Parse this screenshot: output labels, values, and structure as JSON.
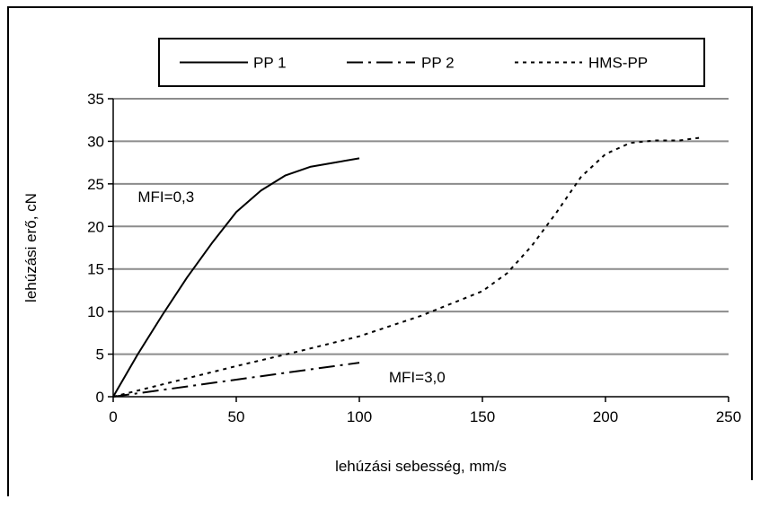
{
  "chart_data": {
    "type": "line",
    "title": "",
    "xlabel": "lehúzási sebesség, mm/s",
    "ylabel": "lehúzási erő, cN",
    "xlim": [
      0,
      250
    ],
    "ylim": [
      0,
      35
    ],
    "xticks": [
      0,
      50,
      100,
      150,
      200,
      250
    ],
    "yticks": [
      0,
      5,
      10,
      15,
      20,
      25,
      30,
      35
    ],
    "grid": "horizontal",
    "legend_position": "top",
    "series": [
      {
        "name": "PP 1",
        "style": "solid",
        "color": "#000000",
        "x": [
          0,
          10,
          20,
          30,
          40,
          50,
          60,
          70,
          80,
          90,
          100
        ],
        "y": [
          0,
          5,
          9.6,
          14,
          18,
          21.7,
          24.2,
          26,
          27,
          27.5,
          28
        ]
      },
      {
        "name": "PP 2",
        "style": "dashdot",
        "color": "#000000",
        "x": [
          0,
          20,
          40,
          60,
          80,
          100
        ],
        "y": [
          0,
          0.8,
          1.6,
          2.4,
          3.2,
          4
        ]
      },
      {
        "name": "HMS-PP",
        "style": "dotted",
        "color": "#000000",
        "x": [
          0,
          25,
          50,
          75,
          100,
          125,
          150,
          160,
          170,
          180,
          190,
          200,
          210,
          220,
          230,
          238
        ],
        "y": [
          0,
          1.8,
          3.6,
          5.3,
          7.1,
          9.5,
          12.4,
          14.5,
          17.7,
          21.6,
          25.8,
          28.5,
          29.8,
          30.1,
          30.1,
          30.4
        ]
      }
    ],
    "annotations": [
      {
        "text": "MFI=0,3",
        "x": 10,
        "y": 23.5
      },
      {
        "text": "MFI=3,0",
        "x": 112,
        "y": 2.3
      }
    ]
  }
}
